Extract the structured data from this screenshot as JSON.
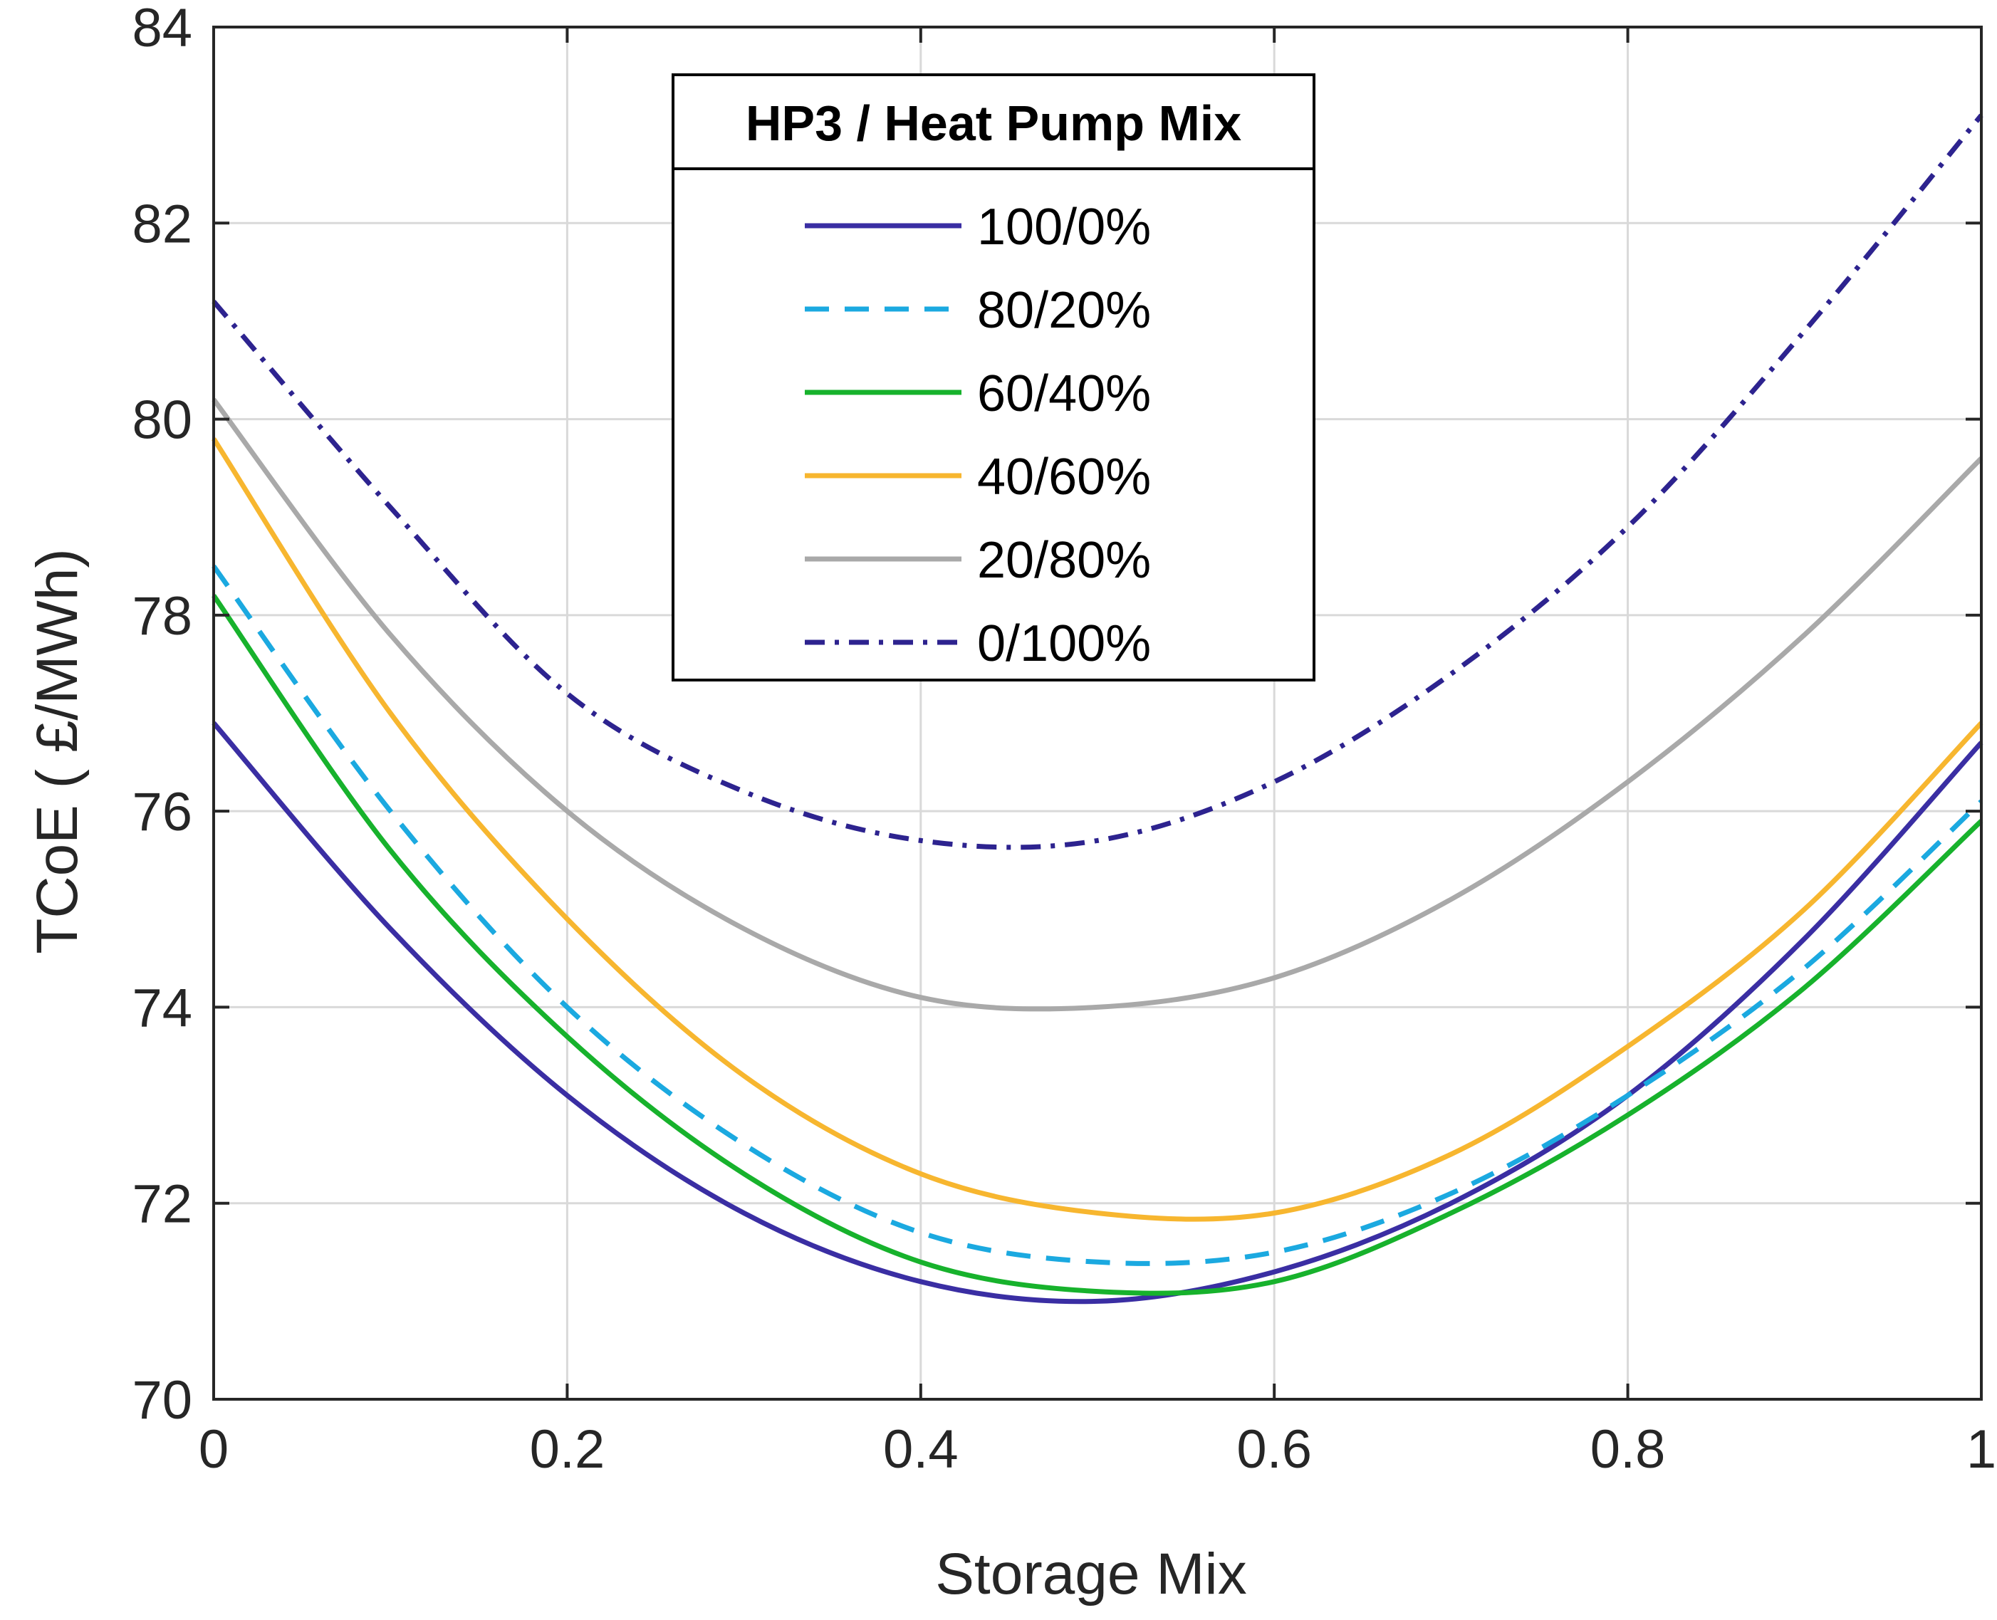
{
  "chart_data": {
    "type": "line",
    "title": "",
    "xlabel": "Storage Mix",
    "ylabel": "TCoE ( £/MWh)",
    "xlim": [
      0,
      1
    ],
    "ylim": [
      70,
      84
    ],
    "grid": true,
    "xticks": [
      0,
      0.2,
      0.4,
      0.6,
      0.8,
      1
    ],
    "xtick_labels": [
      "0",
      "0.2",
      "0.4",
      "0.6",
      "0.8",
      "1"
    ],
    "yticks": [
      70,
      72,
      74,
      76,
      78,
      80,
      82,
      84
    ],
    "ytick_labels": [
      "70",
      "72",
      "74",
      "76",
      "78",
      "80",
      "82",
      "84"
    ],
    "legend": {
      "title": "HP3 / Heat Pump Mix",
      "placement": "top-center"
    },
    "x": [
      0,
      0.1,
      0.2,
      0.3,
      0.4,
      0.5,
      0.6,
      0.7,
      0.8,
      0.9,
      1
    ],
    "series": [
      {
        "name": "100/0%",
        "color": "#3a2ea3",
        "style": "solid",
        "values": [
          76.9,
          74.8,
          73.1,
          71.9,
          71.2,
          71.0,
          71.3,
          72.0,
          73.1,
          74.7,
          76.7
        ]
      },
      {
        "name": "80/20%",
        "color": "#1ba9e0",
        "style": "dashed",
        "values": [
          78.5,
          76.0,
          74.0,
          72.6,
          71.7,
          71.4,
          71.5,
          72.1,
          73.1,
          74.4,
          76.1
        ]
      },
      {
        "name": "60/40%",
        "color": "#17b22c",
        "style": "solid",
        "values": [
          78.2,
          75.6,
          73.7,
          72.3,
          71.4,
          71.1,
          71.2,
          71.9,
          72.9,
          74.2,
          75.9
        ]
      },
      {
        "name": "40/60%",
        "color": "#f7b62f",
        "style": "solid",
        "values": [
          79.8,
          77.0,
          74.9,
          73.3,
          72.3,
          71.9,
          71.9,
          72.5,
          73.6,
          75.0,
          76.9
        ]
      },
      {
        "name": "20/80%",
        "color": "#a9a9a9",
        "style": "solid",
        "values": [
          80.2,
          77.8,
          76.0,
          74.8,
          74.1,
          74.0,
          74.3,
          75.1,
          76.3,
          77.8,
          79.6
        ]
      },
      {
        "name": "0/100%",
        "color": "#2d238f",
        "style": "dashdot",
        "values": [
          81.2,
          79.1,
          77.2,
          76.2,
          75.7,
          75.7,
          76.3,
          77.4,
          78.9,
          80.9,
          83.1
        ]
      }
    ]
  }
}
